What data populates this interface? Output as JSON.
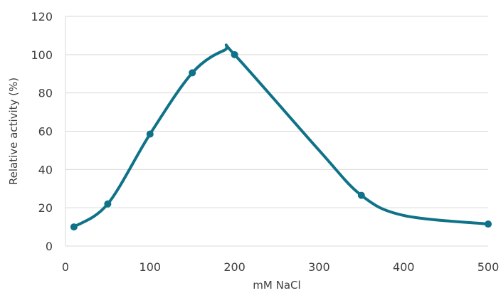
{
  "chart_data": {
    "type": "line",
    "title": "",
    "xlabel": "mM NaCl",
    "ylabel": "Relative activity (%)",
    "xlim": [
      0,
      500
    ],
    "ylim": [
      0,
      120
    ],
    "x_ticks": [
      0,
      100,
      200,
      300,
      400,
      500
    ],
    "y_ticks": [
      0,
      20,
      40,
      60,
      80,
      100,
      120
    ],
    "grid": "horizontal",
    "smooth": true,
    "series_color": "#0F7288",
    "series": [
      {
        "x": [
          10,
          50,
          100,
          150,
          200,
          350,
          500
        ],
        "values": [
          10,
          22,
          58.5,
          90.5,
          100,
          26.5,
          11.5
        ],
        "markers": [
          true,
          true,
          true,
          true,
          true,
          true,
          true
        ]
      }
    ],
    "curve_guide": {
      "x": [
        10,
        50,
        100,
        150,
        188,
        200,
        300,
        350,
        400,
        500
      ],
      "values": [
        10,
        22,
        58.5,
        90.5,
        102.3,
        100,
        50,
        26.5,
        16,
        11.5
      ]
    }
  }
}
